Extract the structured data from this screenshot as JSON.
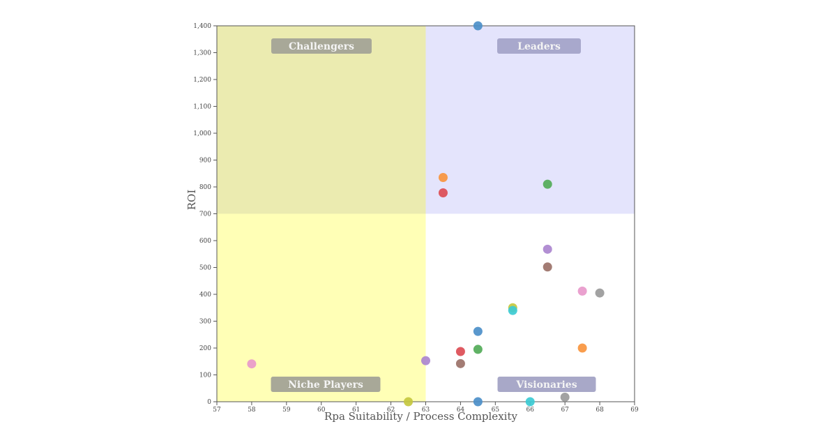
{
  "chart_data": {
    "type": "scatter",
    "title": "",
    "xlabel": "Rpa Suitability / Process Complexity",
    "ylabel": "ROI",
    "xlim": [
      57,
      69
    ],
    "ylim": [
      0,
      1400
    ],
    "x_ticks": [
      57,
      58,
      59,
      60,
      61,
      62,
      63,
      64,
      65,
      66,
      67,
      68,
      69
    ],
    "y_ticks": [
      0,
      100,
      200,
      300,
      400,
      500,
      600,
      700,
      800,
      900,
      1000,
      1100,
      1200,
      1300,
      1400
    ],
    "x_tick_labels": [
      "57",
      "58",
      "59",
      "60",
      "61",
      "62",
      "63",
      "64",
      "65",
      "66",
      "67",
      "68",
      "69"
    ],
    "y_tick_labels": [
      "0",
      "100",
      "200",
      "300",
      "400",
      "500",
      "600",
      "700",
      "800",
      "900",
      "1,000",
      "1,100",
      "1,200",
      "1,300",
      "1,400"
    ],
    "grid": false,
    "legend": "none",
    "quadrant_split": {
      "x": 63,
      "y": 700
    },
    "quadrants": [
      {
        "name": "Challengers",
        "label": "Challengers",
        "x_range": [
          57,
          63
        ],
        "y_range": [
          700,
          1400
        ],
        "color": "#ebebb0"
      },
      {
        "name": "Leaders",
        "label": "Leaders",
        "x_range": [
          63,
          69
        ],
        "y_range": [
          700,
          1400
        ],
        "color": "#e4e4fc"
      },
      {
        "name": "Niche Players",
        "label": "Niche Players",
        "x_range": [
          57,
          63
        ],
        "y_range": [
          0,
          700
        ],
        "color": "#ffffb6"
      },
      {
        "name": "Visionaries",
        "label": "Visionaries",
        "x_range": [
          63,
          69
        ],
        "y_range": [
          0,
          700
        ],
        "color": "#ffffff"
      }
    ],
    "quadrant_label_colors": {
      "Challengers": "#a8a898",
      "Leaders": "#a8a8cc",
      "Niche Players": "#a8a898",
      "Visionaries": "#a8a8c8"
    },
    "points": [
      {
        "x": 64.5,
        "y": 1400,
        "color": "#4c8fc9"
      },
      {
        "x": 63.5,
        "y": 835,
        "color": "#f8953e"
      },
      {
        "x": 63.5,
        "y": 778,
        "color": "#dc4c54"
      },
      {
        "x": 66.5,
        "y": 810,
        "color": "#52ab58"
      },
      {
        "x": 66.5,
        "y": 568,
        "color": "#ab86cf"
      },
      {
        "x": 66.5,
        "y": 502,
        "color": "#9b7168"
      },
      {
        "x": 67.5,
        "y": 412,
        "color": "#e899cb"
      },
      {
        "x": 68.0,
        "y": 405,
        "color": "#9a9a9a"
      },
      {
        "x": 65.5,
        "y": 350,
        "color": "#c6c83f"
      },
      {
        "x": 65.5,
        "y": 340,
        "color": "#3ccbd4"
      },
      {
        "x": 64.5,
        "y": 262,
        "color": "#4c8fc9"
      },
      {
        "x": 67.5,
        "y": 200,
        "color": "#f8953e"
      },
      {
        "x": 64.0,
        "y": 187,
        "color": "#dc4c54"
      },
      {
        "x": 64.5,
        "y": 195,
        "color": "#52ab58"
      },
      {
        "x": 63.0,
        "y": 153,
        "color": "#ab86cf"
      },
      {
        "x": 64.0,
        "y": 142,
        "color": "#9b7168"
      },
      {
        "x": 58.0,
        "y": 141,
        "color": "#e899cb"
      },
      {
        "x": 67.0,
        "y": 17,
        "color": "#9a9a9a"
      },
      {
        "x": 62.5,
        "y": 0,
        "color": "#c6c83f"
      },
      {
        "x": 66.0,
        "y": 0,
        "color": "#3ccbd4"
      },
      {
        "x": 64.5,
        "y": 0,
        "color": "#4c8fc9"
      }
    ]
  }
}
